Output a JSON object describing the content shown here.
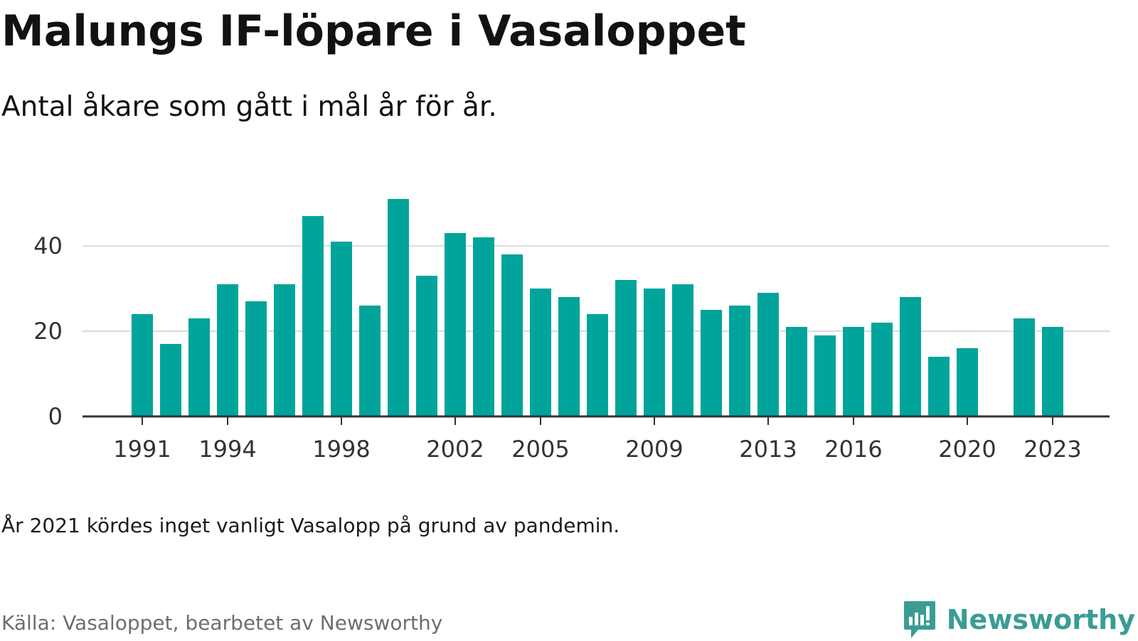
{
  "title": "Malungs IF-löpare i Vasaloppet",
  "subtitle": "Antal åkare som gått i mål år för år.",
  "note": "År 2021 kördes inget vanligt Vasalopp på grund av pandemin.",
  "source": "Källa: Vasaloppet, bearbetet av Newsworthy",
  "brand": {
    "name": "Newsworthy",
    "logo_icon": "bar-chart-speech-bubble-icon",
    "color": "#3a9c94"
  },
  "chart_data": {
    "type": "bar",
    "bar_color": "#00a49a",
    "categories": [
      1991,
      1992,
      1993,
      1994,
      1995,
      1996,
      1997,
      1998,
      1999,
      2000,
      2001,
      2002,
      2003,
      2004,
      2005,
      2006,
      2007,
      2008,
      2009,
      2010,
      2011,
      2012,
      2013,
      2014,
      2015,
      2016,
      2017,
      2018,
      2019,
      2020,
      2021,
      2022,
      2023
    ],
    "values": [
      24,
      17,
      23,
      31,
      27,
      31,
      47,
      41,
      26,
      51,
      33,
      43,
      42,
      38,
      30,
      28,
      24,
      32,
      30,
      31,
      25,
      26,
      29,
      21,
      19,
      21,
      22,
      28,
      14,
      16,
      null,
      23,
      21
    ],
    "x_tick_labels": [
      "1991",
      "1994",
      "1998",
      "2002",
      "2005",
      "2009",
      "2013",
      "2016",
      "2020",
      "2023"
    ],
    "y_ticks": [
      0,
      20,
      40
    ],
    "ylim": [
      0,
      52
    ],
    "grid": true,
    "xlabel": "",
    "ylabel": ""
  }
}
